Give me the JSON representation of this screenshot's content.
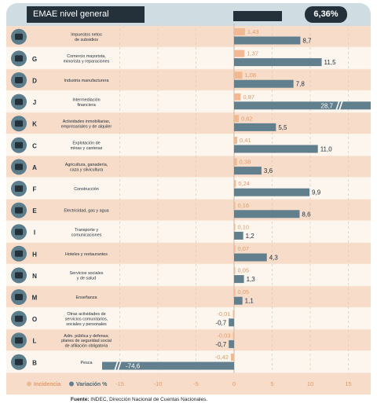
{
  "chart_data": {
    "type": "bar",
    "title": "EMAE nivel general",
    "total": "6,36%",
    "x_ticks": [
      "-15",
      "-10",
      "-5",
      "0",
      "5",
      "10",
      "15"
    ],
    "xlim": [
      -15,
      15
    ],
    "legend": [
      "Incidencia",
      "Variación %"
    ],
    "colors": {
      "incidencia": "#f2b892",
      "variacion": "#617f8d",
      "dark": "#24313b",
      "stripe": "#f6dcc9"
    },
    "rows": [
      {
        "code": "G0",
        "icon": "tax-icon",
        "letter": "",
        "label": "Impuestos netos\nde subsidios",
        "incidencia": 1.43,
        "incidencia_label": "1,43",
        "variacion": 8.7,
        "variacion_label": "8,7"
      },
      {
        "code": "G",
        "icon": "store-icon",
        "letter": "G",
        "label": "Comercio mayorista,\nminorista y reparaciones",
        "incidencia": 1.37,
        "incidencia_label": "1,37",
        "variacion": 11.5,
        "variacion_label": "11,5"
      },
      {
        "code": "D",
        "icon": "gear-icon",
        "letter": "D",
        "label": "Industria manufacturera",
        "incidencia": 1.08,
        "incidencia_label": "1,08",
        "variacion": 7.8,
        "variacion_label": "7,8"
      },
      {
        "code": "J",
        "icon": "bank-icon",
        "letter": "J",
        "label": "Intermediación\nfinanciera",
        "incidencia": 0.87,
        "incidencia_label": "0,87",
        "variacion": 28.7,
        "variacion_label": "28,7"
      },
      {
        "code": "K",
        "icon": "key-icon",
        "letter": "K",
        "label": "Actividades inmobiliarias,\nempresariales y de alquiler",
        "incidencia": 0.62,
        "incidencia_label": "0,62",
        "variacion": 5.5,
        "variacion_label": "5,5"
      },
      {
        "code": "C",
        "icon": "mining-icon",
        "letter": "C",
        "label": "Explotación de\nminas y canteras",
        "incidencia": 0.41,
        "incidencia_label": "0,41",
        "variacion": 11.0,
        "variacion_label": "11,0"
      },
      {
        "code": "A",
        "icon": "farm-icon",
        "letter": "A",
        "label": "Agricultura, ganadería,\ncaza y silvicultura",
        "incidencia": 0.38,
        "incidencia_label": "0,38",
        "variacion": 3.6,
        "variacion_label": "3,6"
      },
      {
        "code": "F",
        "icon": "construction-icon",
        "letter": "F",
        "label": "Construcción",
        "incidencia": 0.24,
        "incidencia_label": "0,24",
        "variacion": 9.9,
        "variacion_label": "9,9"
      },
      {
        "code": "E",
        "icon": "utility-icon",
        "letter": "E",
        "label": "Electricidad, gas y agua",
        "incidencia": 0.16,
        "incidencia_label": "0,16",
        "variacion": 8.6,
        "variacion_label": "8,6"
      },
      {
        "code": "I",
        "icon": "transport-icon",
        "letter": "I",
        "label": "Transporte y\ncomunicaciones",
        "incidencia": 0.1,
        "incidencia_label": "0,10",
        "variacion": 1.2,
        "variacion_label": "1,2"
      },
      {
        "code": "H",
        "icon": "hotel-icon",
        "letter": "H",
        "label": "Hoteles y restaurantes",
        "incidencia": 0.07,
        "incidencia_label": "0,07",
        "variacion": 4.3,
        "variacion_label": "4,3"
      },
      {
        "code": "N",
        "icon": "health-icon",
        "letter": "N",
        "label": "Servicios sociales\ny de salud",
        "incidencia": 0.05,
        "incidencia_label": "0,05",
        "variacion": 1.3,
        "variacion_label": "1,3"
      },
      {
        "code": "M",
        "icon": "education-icon",
        "letter": "M",
        "label": "Enseñanza",
        "incidencia": 0.05,
        "incidencia_label": "0,05",
        "variacion": 1.1,
        "variacion_label": "1,1"
      },
      {
        "code": "O",
        "icon": "community-icon",
        "letter": "O",
        "label": "Otras actividades de\nservicios comunitarios,\nsociales y personales",
        "incidencia": -0.01,
        "incidencia_label": "-0,01",
        "variacion": -0.7,
        "variacion_label": "-0,7"
      },
      {
        "code": "L",
        "icon": "government-icon",
        "letter": "L",
        "label": "Adm. pública y defensa;\nplanes de seguridad social\nde afiliación obligatoria",
        "incidencia": -0.03,
        "incidencia_label": "-0,03",
        "variacion": -0.7,
        "variacion_label": "-0,7"
      },
      {
        "code": "B",
        "icon": "fishing-icon",
        "letter": "B",
        "label": "Pesca",
        "incidencia": -0.42,
        "incidencia_label": "-0,42",
        "variacion": -74.6,
        "variacion_label": "-74,6"
      }
    ]
  },
  "footer": {
    "source_label": "Fuente:",
    "source_text": " INDEC, Dirección Nacional de Cuentas Nacionales."
  }
}
